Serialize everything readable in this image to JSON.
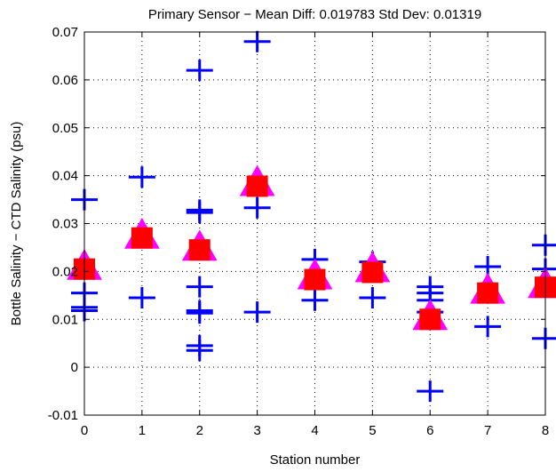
{
  "chart_data": {
    "type": "scatter",
    "title": "Primary Sensor − Mean Diff: 0.019783 Std Dev: 0.01319",
    "xlabel": "Station number",
    "ylabel": "Bottle Salinity − CTD Salinity (psu)",
    "xlim": [
      0,
      8
    ],
    "ylim": [
      -0.01,
      0.07
    ],
    "xticks": [
      0,
      1,
      2,
      3,
      4,
      5,
      6,
      7,
      8
    ],
    "yticks": [
      -0.01,
      0,
      0.01,
      0.02,
      0.03,
      0.04,
      0.05,
      0.06,
      0.07
    ],
    "ytick_labels": [
      "-0.01",
      "0",
      "0.01",
      "0.02",
      "0.03",
      "0.04",
      "0.05",
      "0.06",
      "0.07"
    ],
    "grid": true,
    "series": [
      {
        "marker": "plus",
        "color": "#0000ff",
        "points": [
          [
            0,
            0.035
          ],
          [
            0,
            0.0155
          ],
          [
            0,
            0.0125
          ],
          [
            0,
            0.0118
          ],
          [
            1,
            0.0397
          ],
          [
            1,
            0.0145
          ],
          [
            2,
            0.062
          ],
          [
            2,
            0.0328
          ],
          [
            2,
            0.0323
          ],
          [
            2,
            0.0168
          ],
          [
            2,
            0.0118
          ],
          [
            2,
            0.0113
          ],
          [
            2,
            0.0045
          ],
          [
            2,
            0.0035
          ],
          [
            3,
            0.068
          ],
          [
            3,
            0.0333
          ],
          [
            3,
            0.0115
          ],
          [
            4,
            0.0225
          ],
          [
            4,
            0.014
          ],
          [
            5,
            0.022
          ],
          [
            5,
            0.0145
          ],
          [
            6,
            0.0168
          ],
          [
            6,
            0.0155
          ],
          [
            6,
            0.014
          ],
          [
            6,
            0.0115
          ],
          [
            6,
            -0.005
          ],
          [
            7,
            0.021
          ],
          [
            7,
            0.0085
          ],
          [
            8,
            0.0255
          ],
          [
            8,
            0.0205
          ],
          [
            8,
            0.006
          ]
        ]
      },
      {
        "marker": "triangle",
        "color": "#ff00ff",
        "points": [
          [
            0,
            0.021
          ],
          [
            1,
            0.0275
          ],
          [
            2,
            0.025
          ],
          [
            3,
            0.0385
          ],
          [
            4,
            0.019
          ],
          [
            5,
            0.0205
          ],
          [
            6,
            0.0105
          ],
          [
            7,
            0.016
          ],
          [
            8,
            0.0172
          ]
        ]
      },
      {
        "marker": "square",
        "color": "#ff0000",
        "points": [
          [
            0,
            0.0205
          ],
          [
            1,
            0.027
          ],
          [
            2,
            0.0245
          ],
          [
            3,
            0.0378
          ],
          [
            4,
            0.0183
          ],
          [
            5,
            0.0198
          ],
          [
            6,
            0.01
          ],
          [
            7,
            0.0155
          ],
          [
            8,
            0.0167
          ]
        ]
      }
    ]
  }
}
